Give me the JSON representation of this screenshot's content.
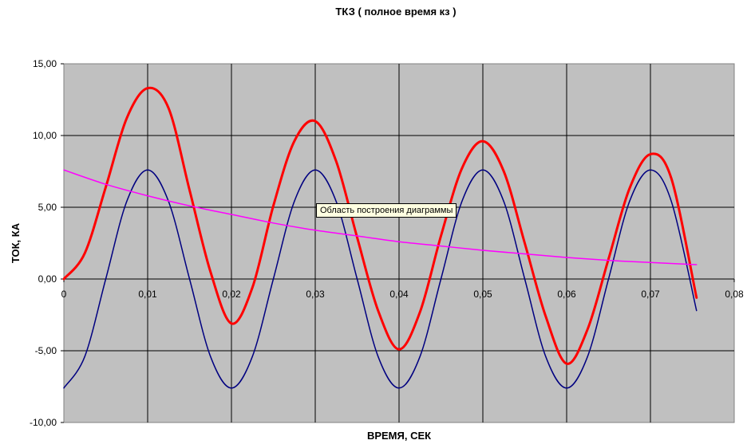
{
  "chart_data": {
    "type": "line",
    "title": "ТКЗ ( полное время кз  )",
    "xlabel": "ВРЕМЯ, СЕК",
    "ylabel": "ТОК, КА",
    "xlim": [
      0,
      0.08
    ],
    "ylim": [
      -10,
      15
    ],
    "x_ticks": [
      "0",
      "0,01",
      "0,02",
      "0,03",
      "0,04",
      "0,05",
      "0,06",
      "0,07",
      "0,08"
    ],
    "y_ticks": [
      "15,00",
      "10,00",
      "5,00",
      "0,00",
      "-5,00",
      "-10,00"
    ],
    "grid": true,
    "legend": "none",
    "plot_background": "#c0c0c0",
    "series": [
      {
        "color": "#ff0000",
        "x": [
          0,
          0.0025,
          0.005,
          0.0075,
          0.01,
          0.0125,
          0.015,
          0.0175,
          0.02,
          0.0225,
          0.025,
          0.0275,
          0.03,
          0.0325,
          0.035,
          0.0375,
          0.04,
          0.0425,
          0.045,
          0.0475,
          0.05,
          0.0525,
          0.055,
          0.0575,
          0.06,
          0.0625,
          0.065,
          0.0675,
          0.07,
          0.0725,
          0.0755
        ],
        "y": [
          0,
          1.8,
          6.4,
          11.2,
          13.3,
          11.9,
          6.2,
          0.5,
          -3.1,
          -0.6,
          5.1,
          9.6,
          11.0,
          8.2,
          2.9,
          -2.2,
          -4.9,
          -2.3,
          3.0,
          7.7,
          9.6,
          7.5,
          2.5,
          -2.6,
          -5.9,
          -3.5,
          1.4,
          6.3,
          8.7,
          7.0,
          -1.3
        ]
      },
      {
        "color": "#000080",
        "x": [
          0,
          0.0025,
          0.005,
          0.0075,
          0.01,
          0.0125,
          0.015,
          0.0175,
          0.02,
          0.0225,
          0.025,
          0.0275,
          0.03,
          0.0325,
          0.035,
          0.0375,
          0.04,
          0.0425,
          0.045,
          0.0475,
          0.05,
          0.0525,
          0.055,
          0.0575,
          0.06,
          0.0625,
          0.065,
          0.0675,
          0.07,
          0.0725,
          0.0755
        ],
        "y": [
          -7.6,
          -5.4,
          0,
          5.4,
          7.6,
          5.4,
          0,
          -5.4,
          -7.6,
          -5.4,
          0,
          5.4,
          7.6,
          5.4,
          0,
          -5.4,
          -7.6,
          -5.4,
          0,
          5.4,
          7.6,
          5.4,
          0,
          -5.4,
          -7.6,
          -5.4,
          0,
          5.4,
          7.6,
          5.4,
          -2.2
        ]
      },
      {
        "color": "#ff00ff",
        "x": [
          0,
          0.005,
          0.01,
          0.015,
          0.02,
          0.025,
          0.03,
          0.035,
          0.04,
          0.045,
          0.05,
          0.055,
          0.06,
          0.065,
          0.07,
          0.0755
        ],
        "y": [
          7.6,
          6.6,
          5.8,
          5.1,
          4.5,
          3.9,
          3.4,
          3.0,
          2.6,
          2.3,
          2.0,
          1.75,
          1.5,
          1.3,
          1.15,
          1.0
        ]
      }
    ]
  },
  "tooltip": {
    "text": "Область построения диаграммы"
  }
}
